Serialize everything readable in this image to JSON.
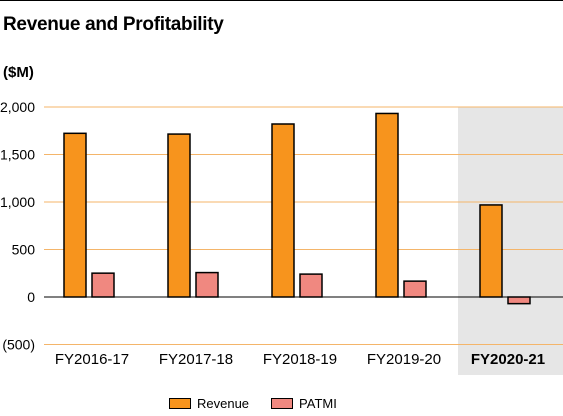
{
  "title": "Revenue and Profitability",
  "unit_label": "($M)",
  "colors": {
    "revenue": "#f7941d",
    "patmi": "#f08880",
    "gridline": "#f4b56a",
    "highlight_band": "#e6e6e6",
    "outline": "#000000"
  },
  "chart_data": {
    "type": "bar",
    "title": "Revenue and Profitability",
    "ylabel": "($M)",
    "xlabel": "",
    "categories": [
      "FY2016-17",
      "FY2017-18",
      "FY2018-19",
      "FY2019-20",
      "FY2020-21"
    ],
    "highlighted_category": "FY2020-21",
    "series": [
      {
        "name": "Revenue",
        "values": [
          1723,
          1715,
          1821,
          1932,
          969
        ]
      },
      {
        "name": "PATMI",
        "values": [
          251,
          257,
          241,
          167,
          -70
        ]
      }
    ],
    "ylim": [
      -500,
      2000
    ],
    "yticks": [
      -500,
      0,
      500,
      1000,
      1500,
      2000
    ],
    "ytick_labels": [
      "(500)",
      "0",
      "500",
      "1,000",
      "1,500",
      "2,000"
    ],
    "grid": true,
    "legend_position": "bottom-center"
  }
}
